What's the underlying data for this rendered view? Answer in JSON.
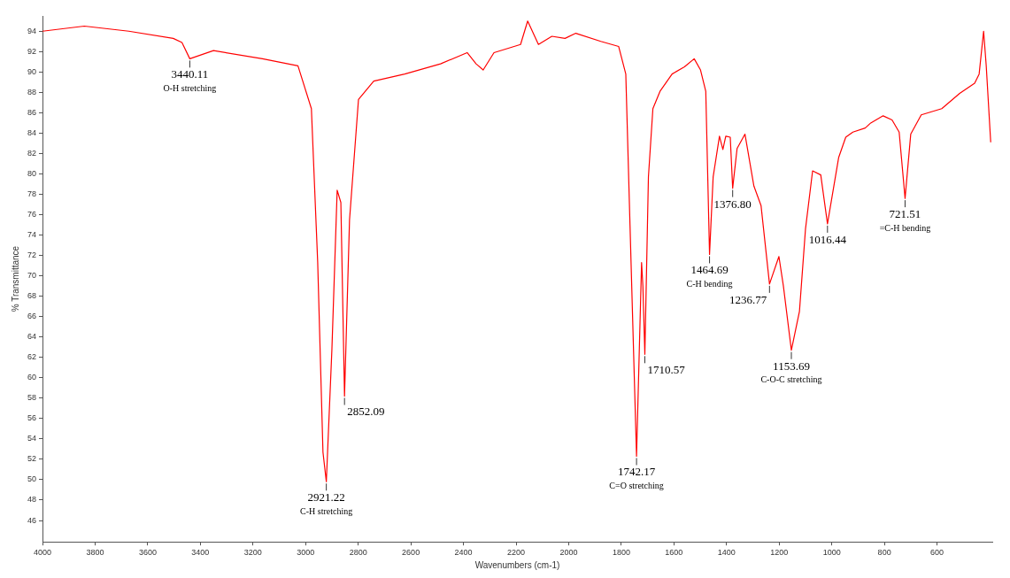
{
  "chart_data": {
    "type": "line",
    "xlabel": "Wavenumbers (cm-1)",
    "ylabel": "% Transmittance",
    "xlim": [
      4000,
      390
    ],
    "xticks": [
      4000,
      3800,
      3600,
      3400,
      3200,
      3000,
      2800,
      2600,
      2400,
      2200,
      2000,
      1800,
      1600,
      1400,
      1200,
      1000,
      800,
      600
    ],
    "ylim": [
      43.9,
      95.5
    ],
    "yticks": [
      46,
      48,
      50,
      52,
      54,
      56,
      58,
      60,
      62,
      64,
      66,
      68,
      70,
      72,
      74,
      76,
      78,
      80,
      82,
      84,
      86,
      88,
      90,
      92,
      94
    ],
    "grid": false,
    "legend": false,
    "marker": "none",
    "line_style": "solid",
    "series": [
      {
        "color": "#ff0000",
        "x": [
          4000,
          3841,
          3672,
          3503,
          3470,
          3440.11,
          3350,
          3164,
          3029,
          2978,
          2954,
          2934,
          2921.22,
          2900,
          2880,
          2866,
          2852.09,
          2833,
          2799,
          2741,
          2623,
          2487,
          2386,
          2352,
          2325,
          2284,
          2183,
          2156,
          2115,
          2064,
          2014,
          1973,
          1878,
          1810,
          1783,
          1763,
          1742.17,
          1723,
          1718,
          1710.57,
          1697,
          1680,
          1653,
          1607,
          1560,
          1523,
          1499,
          1479,
          1464.69,
          1451,
          1427,
          1414,
          1403,
          1386,
          1376.8,
          1360,
          1330,
          1296,
          1269,
          1236.77,
          1201,
          1184,
          1153.69,
          1123,
          1100,
          1073,
          1042,
          1016.44,
          974,
          947,
          920,
          873,
          852,
          805,
          771,
          744,
          721.51,
          700,
          660,
          582,
          514,
          457,
          440,
          423,
          413,
          396
        ],
        "values": [
          94.0,
          94.5,
          94.0,
          93.3,
          92.9,
          91.3,
          92.1,
          91.3,
          90.6,
          86.4,
          71.3,
          52.7,
          49.8,
          62.8,
          78.4,
          77.2,
          58.2,
          75.5,
          87.3,
          89.1,
          89.8,
          90.8,
          91.9,
          90.8,
          90.2,
          91.9,
          92.7,
          95.0,
          92.7,
          93.5,
          93.3,
          93.8,
          93.0,
          92.5,
          89.8,
          71.3,
          52.3,
          71.3,
          69.0,
          62.3,
          79.7,
          86.4,
          88.1,
          89.8,
          90.5,
          91.3,
          90.2,
          88.1,
          72.1,
          79.7,
          83.7,
          82.4,
          83.7,
          83.6,
          78.6,
          82.5,
          83.9,
          78.8,
          76.9,
          69.2,
          71.9,
          69.0,
          62.7,
          66.5,
          74.6,
          80.3,
          79.9,
          75.1,
          81.6,
          83.6,
          84.1,
          84.5,
          85.0,
          85.7,
          85.3,
          84.1,
          77.6,
          83.9,
          85.8,
          86.4,
          87.9,
          88.9,
          89.8,
          94.0,
          90.6,
          83.1
        ]
      }
    ],
    "annotations": [
      {
        "text": "3440.11",
        "x": 3440.11,
        "y": 91.3
      },
      {
        "text": "O-H stretching",
        "x": 3440.11,
        "y": 91.3
      },
      {
        "text": "2921.22",
        "x": 2921.22,
        "y": 49.8
      },
      {
        "text": "C-H stretching",
        "x": 2921.22,
        "y": 49.8
      },
      {
        "text": "2852.09",
        "x": 2852.09,
        "y": 58.2
      },
      {
        "text": "1742.17",
        "x": 1742.17,
        "y": 52.3
      },
      {
        "text": "C=O stretching",
        "x": 1742.17,
        "y": 52.3
      },
      {
        "text": "1710.57",
        "x": 1710.57,
        "y": 62.3
      },
      {
        "text": "1464.69",
        "x": 1464.69,
        "y": 72.1
      },
      {
        "text": "C-H bending",
        "x": 1464.69,
        "y": 72.1
      },
      {
        "text": "1376.80",
        "x": 1376.8,
        "y": 78.6
      },
      {
        "text": "1236.77",
        "x": 1236.77,
        "y": 69.2
      },
      {
        "text": "1153.69",
        "x": 1153.69,
        "y": 62.7
      },
      {
        "text": "C-O-C stretching",
        "x": 1153.69,
        "y": 62.7
      },
      {
        "text": "1016.44",
        "x": 1016.44,
        "y": 75.1
      },
      {
        "text": "721.51",
        "x": 721.51,
        "y": 77.6
      },
      {
        "text": "=C-H bending",
        "x": 721.51,
        "y": 77.6
      }
    ]
  }
}
